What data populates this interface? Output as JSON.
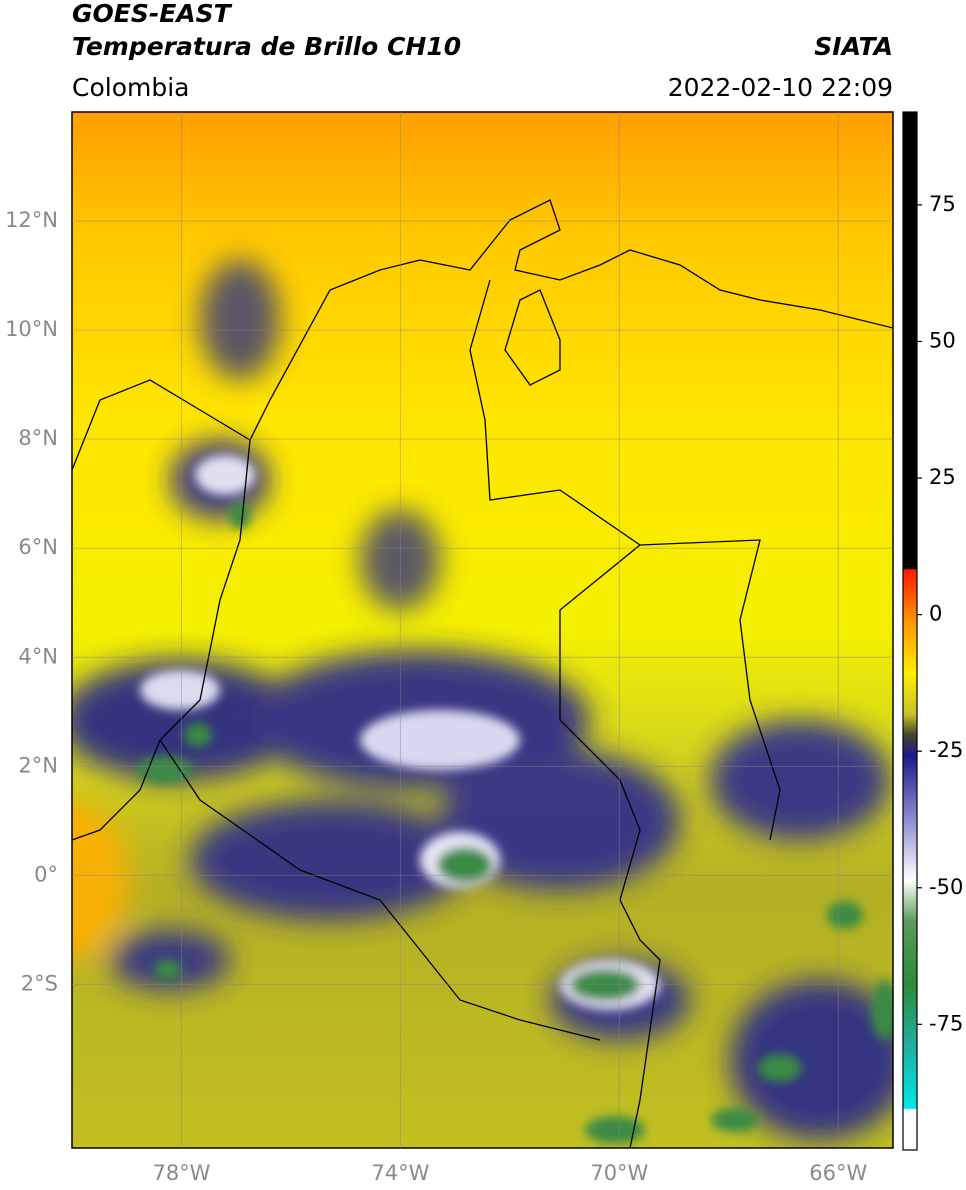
{
  "header": {
    "title": "GOES-EAST",
    "subtitle": "Temperatura de Brillo CH10",
    "source": "SIATA",
    "region": "Colombia",
    "datetime": "2022-02-10 22:09"
  },
  "map": {
    "lon_range": [
      -80,
      -65
    ],
    "lat_range": [
      -5,
      14
    ],
    "lat_ticks": [
      {
        "value": 12,
        "label": "12°N"
      },
      {
        "value": 10,
        "label": "10°N"
      },
      {
        "value": 8,
        "label": "8°N"
      },
      {
        "value": 6,
        "label": "6°N"
      },
      {
        "value": 4,
        "label": "4°N"
      },
      {
        "value": 2,
        "label": "2°N"
      },
      {
        "value": 0,
        "label": "0°"
      },
      {
        "value": -2,
        "label": "2°S"
      }
    ],
    "lon_ticks": [
      {
        "value": -78,
        "label": "78°W"
      },
      {
        "value": -74,
        "label": "74°W"
      },
      {
        "value": -70,
        "label": "70°W"
      },
      {
        "value": -66,
        "label": "66°W"
      }
    ]
  },
  "colorbar": {
    "range": [
      -98,
      92
    ],
    "ticks": [
      75,
      50,
      25,
      0,
      -25,
      -50,
      -75
    ]
  }
}
